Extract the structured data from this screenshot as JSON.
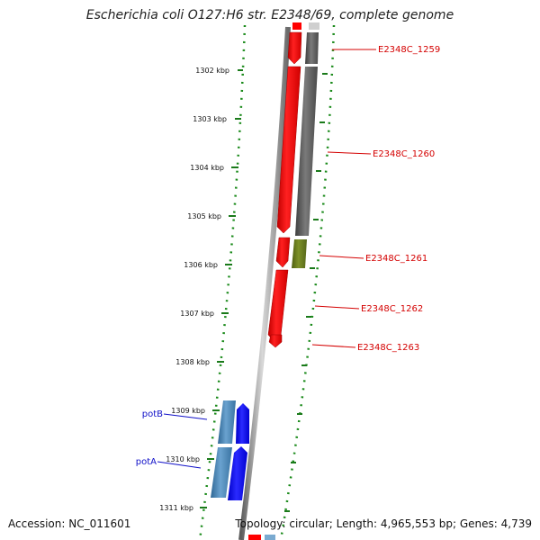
{
  "title": "Escherichia coli O127:H6 str. E2348/69, complete genome",
  "footer": {
    "accession": "Accession: NC_011601",
    "summary": "Topology: circular; Length: 4,965,553 bp; Genes: 4,739"
  },
  "ticks": [
    {
      "label": "1302 kbp"
    },
    {
      "label": "1303 kbp"
    },
    {
      "label": "1304 kbp"
    },
    {
      "label": "1305 kbp"
    },
    {
      "label": "1306 kbp"
    },
    {
      "label": "1307 kbp"
    },
    {
      "label": "1308 kbp"
    },
    {
      "label": "1309 kbp"
    },
    {
      "label": "1310 kbp"
    },
    {
      "label": "1311 kbp"
    }
  ],
  "gene_labels": [
    {
      "label": "E2348C_1259",
      "color": "#d40000"
    },
    {
      "label": "E2348C_1260",
      "color": "#d40000"
    },
    {
      "label": "E2348C_1261",
      "color": "#d40000"
    },
    {
      "label": "E2348C_1262",
      "color": "#d40000"
    },
    {
      "label": "E2348C_1263",
      "color": "#d40000"
    },
    {
      "label": "potB",
      "color": "#1010c8"
    },
    {
      "label": "potA",
      "color": "#1010c8"
    }
  ],
  "colors": {
    "backbone": "#8a8a8a",
    "dots": "#1a8a1a",
    "forward_gene": "#ff0000",
    "reverse_gene": "#5a5a5a",
    "olive_gene": "#6b7f1a",
    "blue_gene": "#0000ff",
    "steel_gene": "#4a86b8"
  }
}
